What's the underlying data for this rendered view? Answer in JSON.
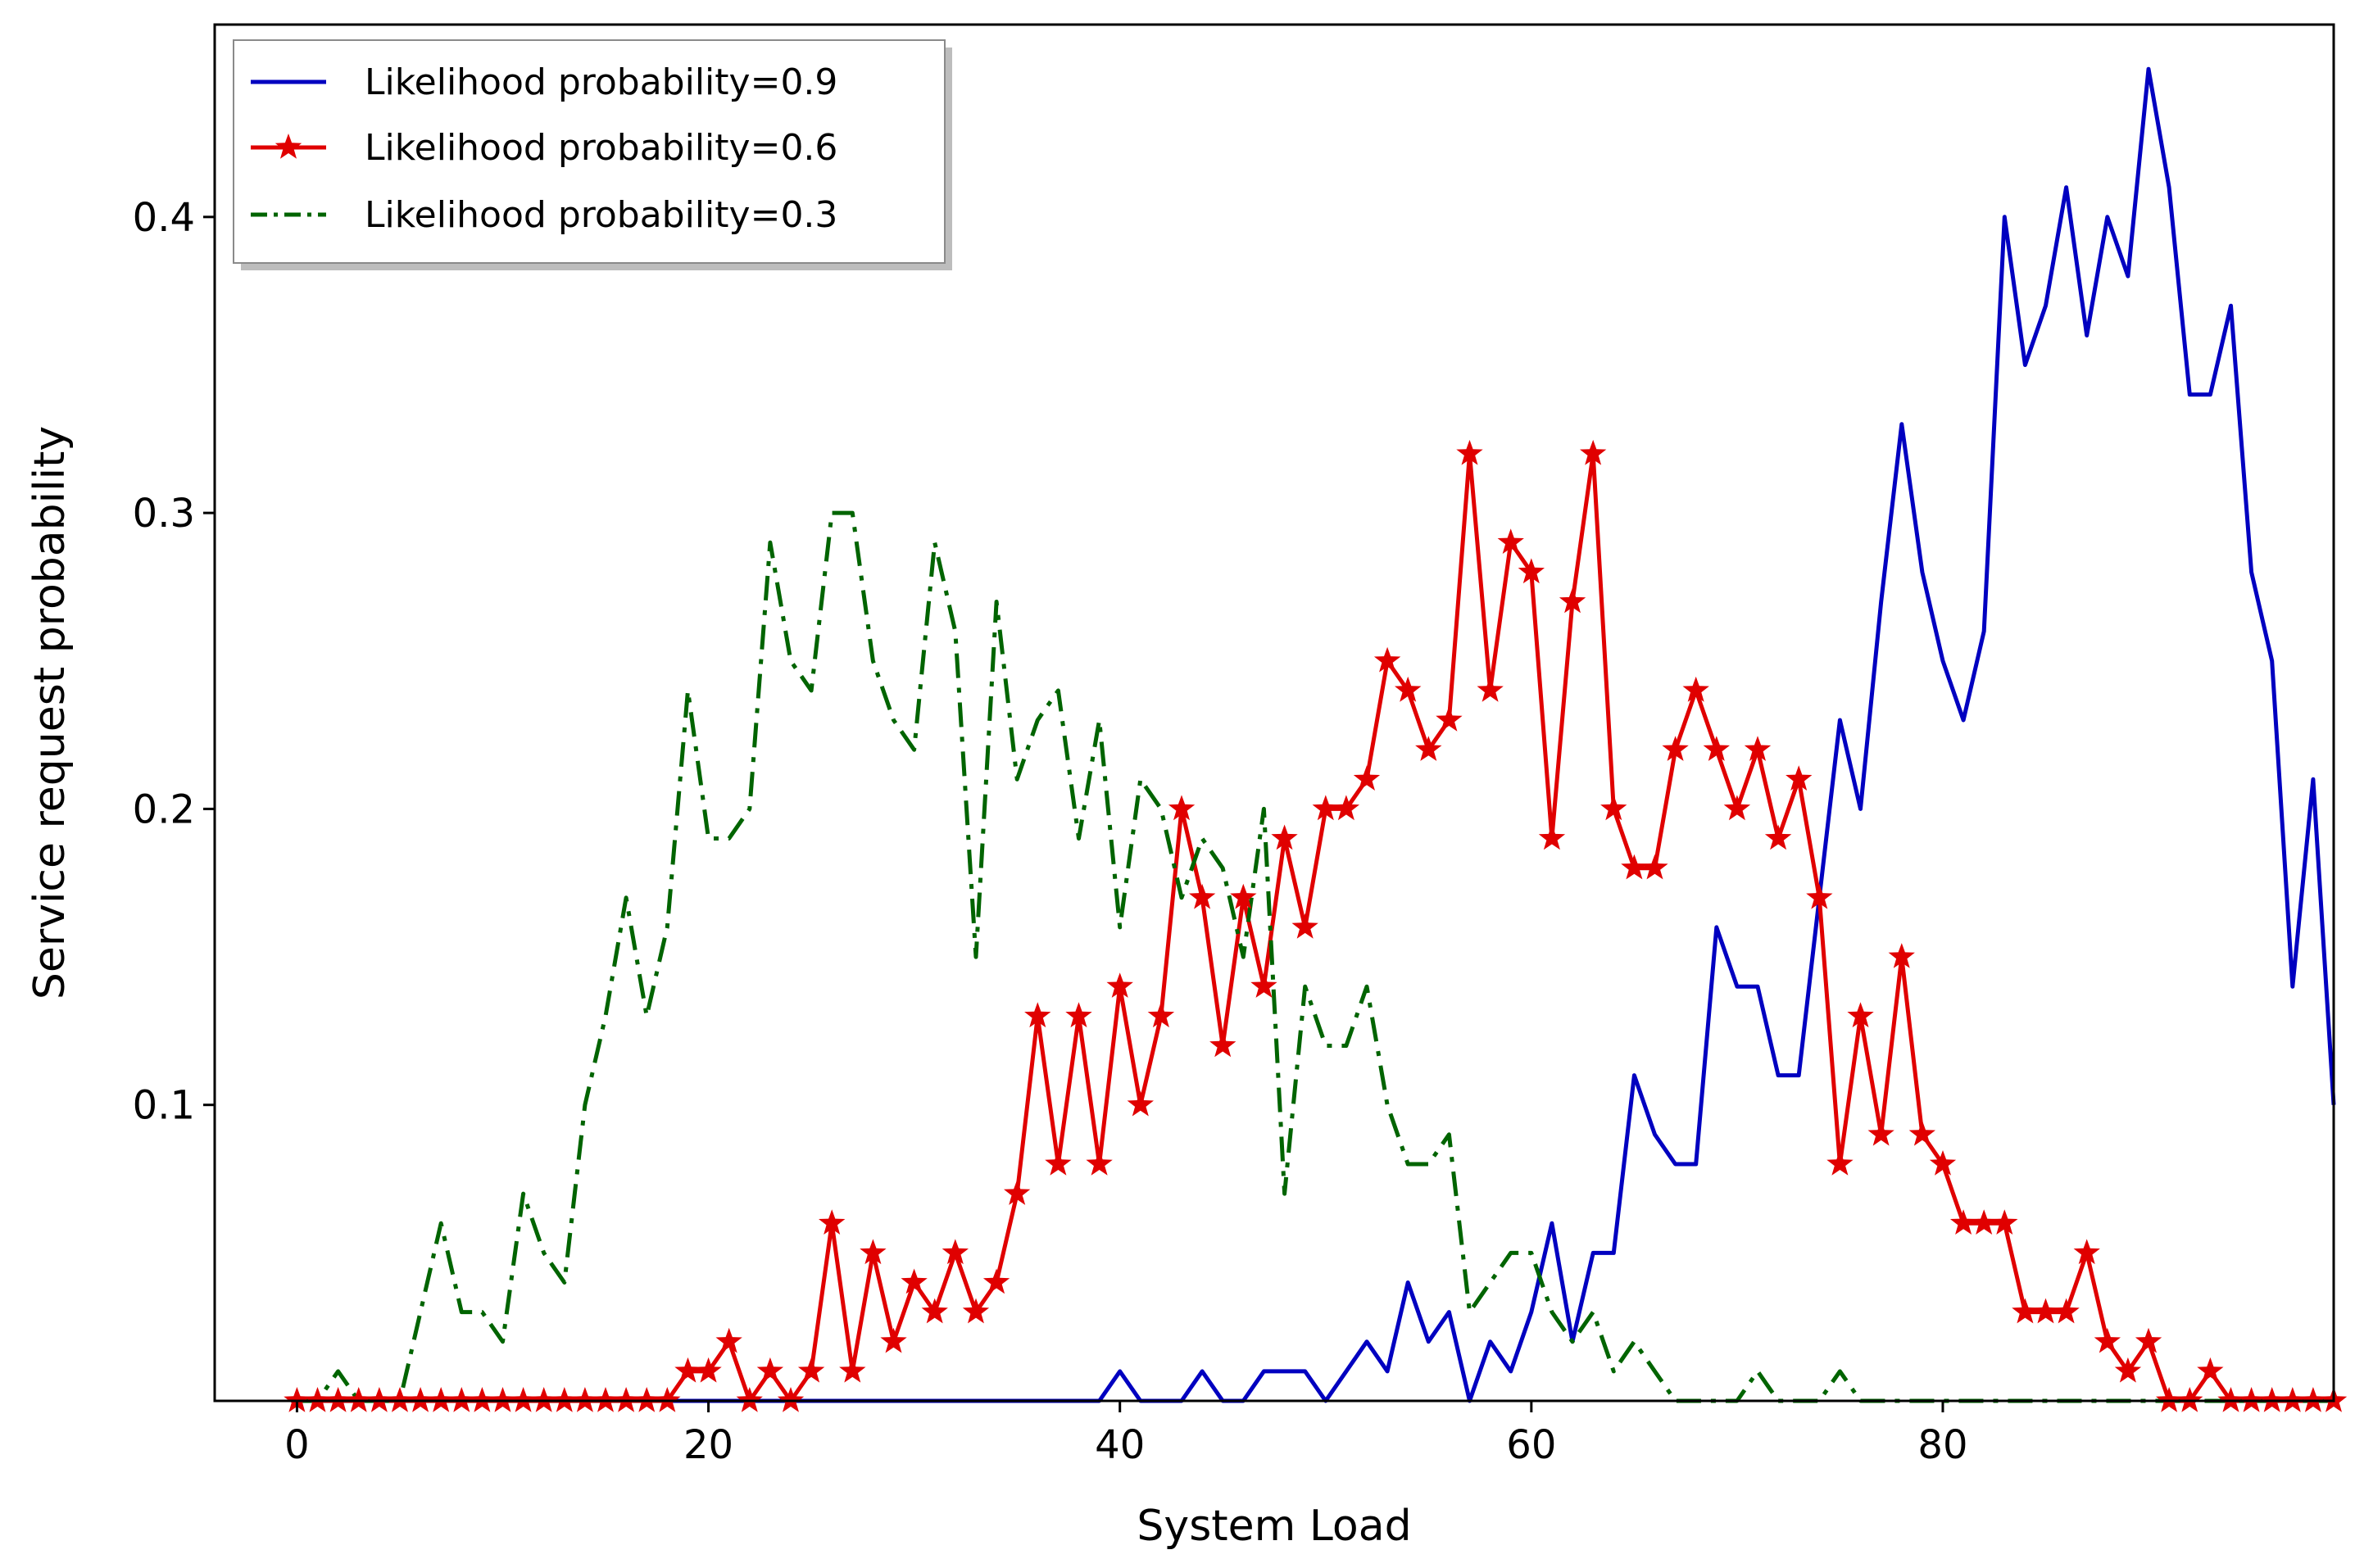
{
  "chart_data": {
    "type": "line",
    "title": "",
    "xlabel": "System Load",
    "ylabel": "Service request probability",
    "xlim": [
      -4,
      99
    ],
    "ylim": [
      0,
      0.465
    ],
    "xticks": [
      0,
      20,
      40,
      60,
      80
    ],
    "xtick_labels": [
      "0",
      "20",
      "40",
      "60",
      "80"
    ],
    "yticks": [
      0.1,
      0.2,
      0.3,
      0.4
    ],
    "ytick_labels": [
      "0.1",
      "0.2",
      "0.3",
      "0.4"
    ],
    "grid": false,
    "legend_position": "top-left",
    "series": [
      {
        "name": "Likelihood probability=0.9",
        "color": "#0000c0",
        "style": "solid",
        "marker": "none",
        "x": [
          0,
          39,
          40,
          41,
          43,
          44,
          45,
          46,
          47,
          48,
          49,
          50,
          51,
          52,
          53,
          54,
          55,
          56,
          57,
          58,
          59,
          60,
          61,
          62,
          63,
          64,
          65,
          66,
          67,
          68,
          69,
          70,
          71,
          72,
          73,
          74,
          75,
          76,
          77,
          78,
          79,
          80,
          81,
          82,
          83,
          84,
          85,
          86,
          87,
          88,
          89,
          90,
          91,
          92,
          93,
          94,
          95,
          96,
          97,
          98,
          99
        ],
        "values": [
          0,
          0,
          0.01,
          0,
          0,
          0.01,
          0,
          0,
          0.01,
          0.01,
          0.01,
          0,
          0.01,
          0.02,
          0.01,
          0.04,
          0.02,
          0.03,
          0,
          0.02,
          0.01,
          0.03,
          0.06,
          0.02,
          0.05,
          0.05,
          0.11,
          0.09,
          0.08,
          0.08,
          0.16,
          0.14,
          0.14,
          0.11,
          0.11,
          0.17,
          0.23,
          0.2,
          0.27,
          0.33,
          0.28,
          0.25,
          0.23,
          0.26,
          0.4,
          0.35,
          0.37,
          0.41,
          0.36,
          0.4,
          0.38,
          0.45,
          0.41,
          0.34,
          0.34,
          0.37,
          0.28,
          0.25,
          0.14,
          0.21,
          0.1
        ]
      },
      {
        "name": "Likelihood probability=0.6",
        "color": "#e00000",
        "style": "solid",
        "marker": "star",
        "x": [
          0,
          1,
          2,
          3,
          4,
          5,
          6,
          7,
          8,
          9,
          10,
          11,
          12,
          13,
          14,
          15,
          16,
          17,
          18,
          19,
          20,
          21,
          22,
          23,
          24,
          25,
          26,
          27,
          28,
          29,
          30,
          31,
          32,
          33,
          34,
          35,
          36,
          37,
          38,
          39,
          40,
          41,
          42,
          43,
          44,
          45,
          46,
          47,
          48,
          49,
          50,
          51,
          52,
          53,
          54,
          55,
          56,
          57,
          58,
          59,
          60,
          61,
          62,
          63,
          64,
          65,
          66,
          67,
          68,
          69,
          70,
          71,
          72,
          73,
          74,
          75,
          76,
          77,
          78,
          79,
          80,
          81,
          82,
          83,
          84,
          85,
          86,
          87,
          88,
          89,
          90,
          91,
          92,
          93,
          94,
          95,
          96,
          97,
          98,
          99
        ],
        "values": [
          0,
          0,
          0,
          0,
          0,
          0,
          0,
          0,
          0,
          0,
          0,
          0,
          0,
          0,
          0,
          0,
          0,
          0,
          0,
          0.01,
          0.01,
          0.02,
          0,
          0.01,
          0,
          0.01,
          0.06,
          0.01,
          0.05,
          0.02,
          0.04,
          0.03,
          0.05,
          0.03,
          0.04,
          0.07,
          0.13,
          0.08,
          0.13,
          0.08,
          0.14,
          0.1,
          0.13,
          0.2,
          0.17,
          0.12,
          0.17,
          0.14,
          0.19,
          0.16,
          0.2,
          0.2,
          0.21,
          0.25,
          0.24,
          0.22,
          0.23,
          0.32,
          0.24,
          0.29,
          0.28,
          0.19,
          0.27,
          0.32,
          0.2,
          0.18,
          0.18,
          0.22,
          0.24,
          0.22,
          0.2,
          0.22,
          0.19,
          0.21,
          0.17,
          0.08,
          0.13,
          0.09,
          0.15,
          0.09,
          0.08,
          0.06,
          0.06,
          0.06,
          0.03,
          0.03,
          0.03,
          0.05,
          0.02,
          0.01,
          0.02,
          0,
          0,
          0.01,
          0,
          0,
          0,
          0,
          0,
          0
        ]
      },
      {
        "name": "Likelihood probability=0.3",
        "color": "#006400",
        "style": "dashdot",
        "marker": "none",
        "x": [
          0,
          1,
          2,
          3,
          4,
          5,
          6,
          7,
          8,
          9,
          10,
          11,
          12,
          13,
          14,
          15,
          16,
          17,
          18,
          19,
          20,
          21,
          22,
          23,
          24,
          25,
          26,
          27,
          28,
          29,
          30,
          31,
          32,
          33,
          34,
          35,
          36,
          37,
          38,
          39,
          40,
          41,
          42,
          43,
          44,
          45,
          46,
          47,
          48,
          49,
          50,
          51,
          52,
          53,
          54,
          55,
          56,
          57,
          58,
          59,
          60,
          61,
          62,
          63,
          64,
          65,
          66,
          67,
          68,
          69,
          70,
          71,
          72,
          73,
          74,
          75,
          76,
          77,
          78,
          79,
          80,
          81,
          82,
          83,
          84,
          85,
          86,
          87,
          88,
          89,
          90,
          91,
          92,
          93,
          94,
          95,
          96,
          97,
          98,
          99
        ],
        "values": [
          0,
          0,
          0.01,
          0,
          0,
          0,
          0.03,
          0.06,
          0.03,
          0.03,
          0.02,
          0.07,
          0.05,
          0.04,
          0.1,
          0.13,
          0.17,
          0.13,
          0.16,
          0.24,
          0.19,
          0.19,
          0.2,
          0.29,
          0.25,
          0.24,
          0.3,
          0.3,
          0.25,
          0.23,
          0.22,
          0.29,
          0.26,
          0.15,
          0.27,
          0.21,
          0.23,
          0.24,
          0.19,
          0.23,
          0.16,
          0.21,
          0.2,
          0.17,
          0.19,
          0.18,
          0.15,
          0.2,
          0.07,
          0.14,
          0.12,
          0.12,
          0.14,
          0.1,
          0.08,
          0.08,
          0.09,
          0.03,
          0.04,
          0.05,
          0.05,
          0.03,
          0.02,
          0.03,
          0.01,
          0.02,
          0.01,
          0,
          0,
          0,
          0,
          0.01,
          0,
          0,
          0,
          0.01,
          0,
          0,
          0,
          0,
          0,
          0,
          0,
          0,
          0,
          0,
          0,
          0,
          0,
          0,
          0,
          0,
          0,
          0,
          0,
          0,
          0,
          0,
          0,
          0
        ]
      }
    ]
  }
}
